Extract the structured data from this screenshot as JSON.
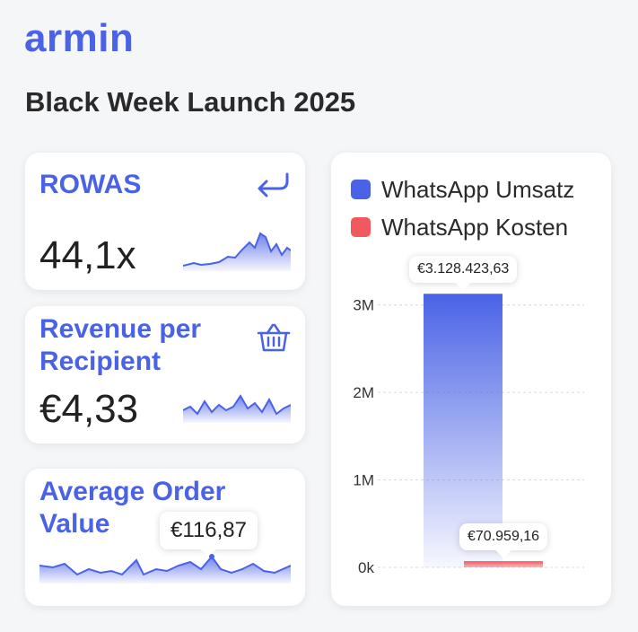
{
  "brand": {
    "logo": "armin"
  },
  "page": {
    "title": "Black Week Launch 2025"
  },
  "colors": {
    "accent": "#4a63e6",
    "umsatz": "#4a63e6",
    "kosten": "#f05a5e"
  },
  "kpis": {
    "rowas": {
      "label": "ROWAS",
      "value": "44,1x",
      "icon": "return-arrow-icon"
    },
    "rpr": {
      "label": "Revenue per Recipient",
      "value": "€4,33",
      "icon": "basket-icon"
    },
    "aov": {
      "label": "Average Order Value",
      "value": "€116,87"
    }
  },
  "chart_data": {
    "type": "bar",
    "categories": [
      "WhatsApp Umsatz",
      "WhatsApp Kosten"
    ],
    "series": [
      {
        "name": "WhatsApp Umsatz",
        "values": [
          3128423.63,
          null
        ]
      },
      {
        "name": "WhatsApp Kosten",
        "values": [
          null,
          70959.16
        ]
      }
    ],
    "values": [
      3128423.63,
      70959.16
    ],
    "data_labels": [
      "€3.128.423,63",
      "€70.959,16"
    ],
    "ytick_labels": [
      "0k",
      "1M",
      "2M",
      "3M"
    ],
    "yticks": [
      0,
      1000000,
      2000000,
      3000000
    ],
    "ylim": [
      0,
      3100000
    ],
    "grid": true,
    "legend": "top-left"
  }
}
